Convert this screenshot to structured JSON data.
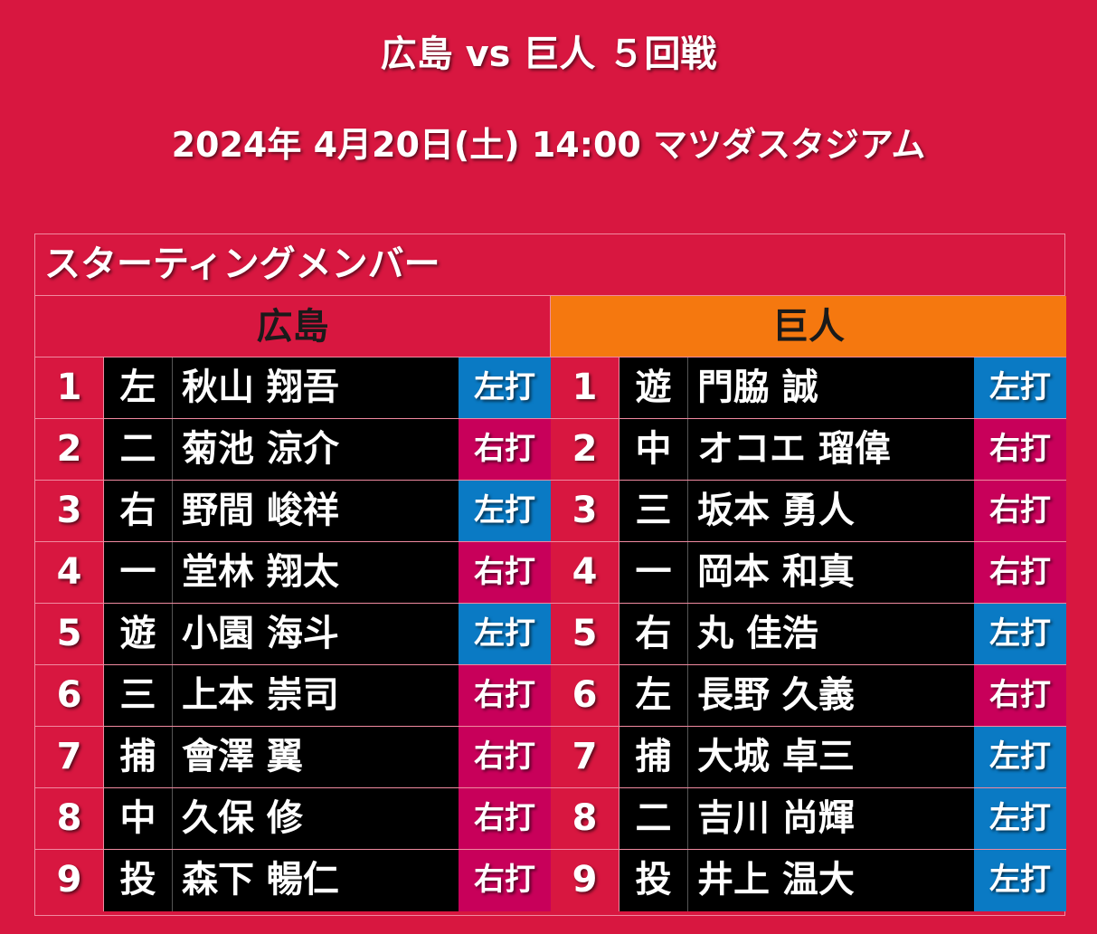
{
  "header": {
    "title": "広島 vs 巨人 ５回戦",
    "subtitle": "2024年 4月20日(土) 14:00 マツダスタジアム"
  },
  "board": {
    "section_label": "スターティングメンバー",
    "home_team": "広島",
    "away_team": "巨人"
  },
  "colors": {
    "background": "#d81740",
    "away_header": "#f5780f",
    "right_bat": "#c8005a",
    "left_bat": "#0a7ac4",
    "player_cell": "#000000"
  },
  "home_lineup": [
    {
      "order": "1",
      "position": "左",
      "name": "秋山 翔吾",
      "bats": "左打",
      "bat_side": "left"
    },
    {
      "order": "2",
      "position": "二",
      "name": "菊池 涼介",
      "bats": "右打",
      "bat_side": "right"
    },
    {
      "order": "3",
      "position": "右",
      "name": "野間 峻祥",
      "bats": "左打",
      "bat_side": "left"
    },
    {
      "order": "4",
      "position": "一",
      "name": "堂林 翔太",
      "bats": "右打",
      "bat_side": "right"
    },
    {
      "order": "5",
      "position": "遊",
      "name": "小園 海斗",
      "bats": "左打",
      "bat_side": "left"
    },
    {
      "order": "6",
      "position": "三",
      "name": "上本 崇司",
      "bats": "右打",
      "bat_side": "right"
    },
    {
      "order": "7",
      "position": "捕",
      "name": "會澤 翼",
      "bats": "右打",
      "bat_side": "right"
    },
    {
      "order": "8",
      "position": "中",
      "name": "久保 修",
      "bats": "右打",
      "bat_side": "right"
    },
    {
      "order": "9",
      "position": "投",
      "name": "森下 暢仁",
      "bats": "右打",
      "bat_side": "right"
    }
  ],
  "away_lineup": [
    {
      "order": "1",
      "position": "遊",
      "name": "門脇 誠",
      "bats": "左打",
      "bat_side": "left"
    },
    {
      "order": "2",
      "position": "中",
      "name": "オコエ 瑠偉",
      "bats": "右打",
      "bat_side": "right"
    },
    {
      "order": "3",
      "position": "三",
      "name": "坂本 勇人",
      "bats": "右打",
      "bat_side": "right"
    },
    {
      "order": "4",
      "position": "一",
      "name": "岡本 和真",
      "bats": "右打",
      "bat_side": "right"
    },
    {
      "order": "5",
      "position": "右",
      "name": "丸 佳浩",
      "bats": "左打",
      "bat_side": "left"
    },
    {
      "order": "6",
      "position": "左",
      "name": "長野 久義",
      "bats": "右打",
      "bat_side": "right"
    },
    {
      "order": "7",
      "position": "捕",
      "name": "大城 卓三",
      "bats": "左打",
      "bat_side": "left"
    },
    {
      "order": "8",
      "position": "二",
      "name": "吉川 尚輝",
      "bats": "左打",
      "bat_side": "left"
    },
    {
      "order": "9",
      "position": "投",
      "name": "井上 温大",
      "bats": "左打",
      "bat_side": "left"
    }
  ]
}
